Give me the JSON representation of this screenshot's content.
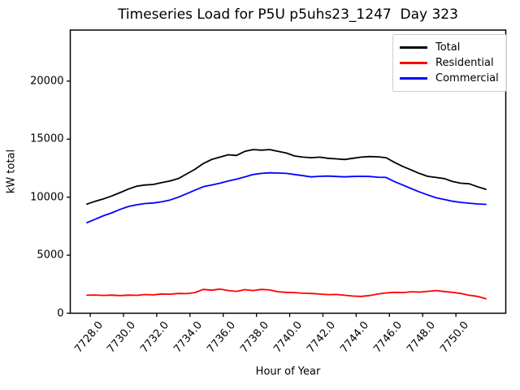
{
  "chart_data": {
    "type": "line",
    "title": "Timeseries Load for P5U p5uhs23_1247  Day 323",
    "xlabel": "Hour of Year",
    "ylabel": "kW total",
    "xlim": [
      7726.8,
      7753.0
    ],
    "ylim": [
      0,
      24400
    ],
    "grid": false,
    "legend_position": "upper right",
    "xticks": [
      {
        "value": 7728,
        "label": "7728.0"
      },
      {
        "value": 7730,
        "label": "7730.0"
      },
      {
        "value": 7732,
        "label": "7732.0"
      },
      {
        "value": 7734,
        "label": "7734.0"
      },
      {
        "value": 7736,
        "label": "7736.0"
      },
      {
        "value": 7738,
        "label": "7738.0"
      },
      {
        "value": 7740,
        "label": "7740.0"
      },
      {
        "value": 7742,
        "label": "7742.0"
      },
      {
        "value": 7744,
        "label": "7744.0"
      },
      {
        "value": 7746,
        "label": "7746.0"
      },
      {
        "value": 7748,
        "label": "7748.0"
      },
      {
        "value": 7750,
        "label": "7750.0"
      }
    ],
    "yticks": [
      {
        "value": 0,
        "label": "0"
      },
      {
        "value": 5000,
        "label": "5000"
      },
      {
        "value": 10000,
        "label": "10000"
      },
      {
        "value": 15000,
        "label": "15000"
      },
      {
        "value": 20000,
        "label": "20000"
      }
    ],
    "x": [
      7727.8,
      7728.3,
      7728.8,
      7729.3,
      7729.8,
      7730.3,
      7730.8,
      7731.3,
      7731.8,
      7732.3,
      7732.8,
      7733.3,
      7733.8,
      7734.3,
      7734.8,
      7735.3,
      7735.8,
      7736.3,
      7736.8,
      7737.3,
      7737.8,
      7738.3,
      7738.8,
      7739.3,
      7739.8,
      7740.3,
      7740.8,
      7741.3,
      7741.8,
      7742.3,
      7742.8,
      7743.3,
      7743.8,
      7744.3,
      7744.8,
      7745.3,
      7745.8,
      7746.3,
      7746.8,
      7747.3,
      7747.8,
      7748.3,
      7748.8,
      7749.3,
      7749.8,
      7750.3,
      7750.8,
      7751.3,
      7751.8
    ],
    "series": [
      {
        "name": "Total",
        "color": "#000000",
        "values": [
          9400,
          9650,
          9850,
          10100,
          10400,
          10700,
          10950,
          11050,
          11100,
          11250,
          11400,
          11600,
          12000,
          12400,
          12900,
          13250,
          13450,
          13650,
          13600,
          13950,
          14100,
          14050,
          14100,
          13950,
          13800,
          13550,
          13450,
          13400,
          13450,
          13350,
          13300,
          13250,
          13350,
          13450,
          13500,
          13480,
          13400,
          13000,
          12650,
          12350,
          12050,
          11800,
          11700,
          11600,
          11350,
          11200,
          11150,
          10900,
          10680
        ]
      },
      {
        "name": "Residential",
        "color": "#ff0000",
        "values": [
          1550,
          1570,
          1530,
          1560,
          1520,
          1560,
          1540,
          1610,
          1580,
          1660,
          1640,
          1700,
          1690,
          1780,
          2050,
          1980,
          2080,
          1950,
          1880,
          2030,
          1950,
          2050,
          2000,
          1850,
          1800,
          1780,
          1720,
          1700,
          1650,
          1600,
          1620,
          1550,
          1480,
          1450,
          1520,
          1650,
          1750,
          1800,
          1780,
          1850,
          1820,
          1880,
          1950,
          1870,
          1800,
          1700,
          1550,
          1450,
          1250
        ]
      },
      {
        "name": "Commercial",
        "color": "#0000ff",
        "values": [
          7800,
          8100,
          8400,
          8650,
          8950,
          9200,
          9350,
          9450,
          9500,
          9600,
          9750,
          10000,
          10300,
          10600,
          10900,
          11050,
          11200,
          11400,
          11550,
          11750,
          11950,
          12050,
          12100,
          12080,
          12050,
          11950,
          11850,
          11750,
          11800,
          11820,
          11780,
          11750,
          11780,
          11800,
          11780,
          11720,
          11700,
          11350,
          11050,
          10750,
          10450,
          10200,
          9950,
          9800,
          9650,
          9550,
          9480,
          9420,
          9380
        ]
      }
    ]
  }
}
